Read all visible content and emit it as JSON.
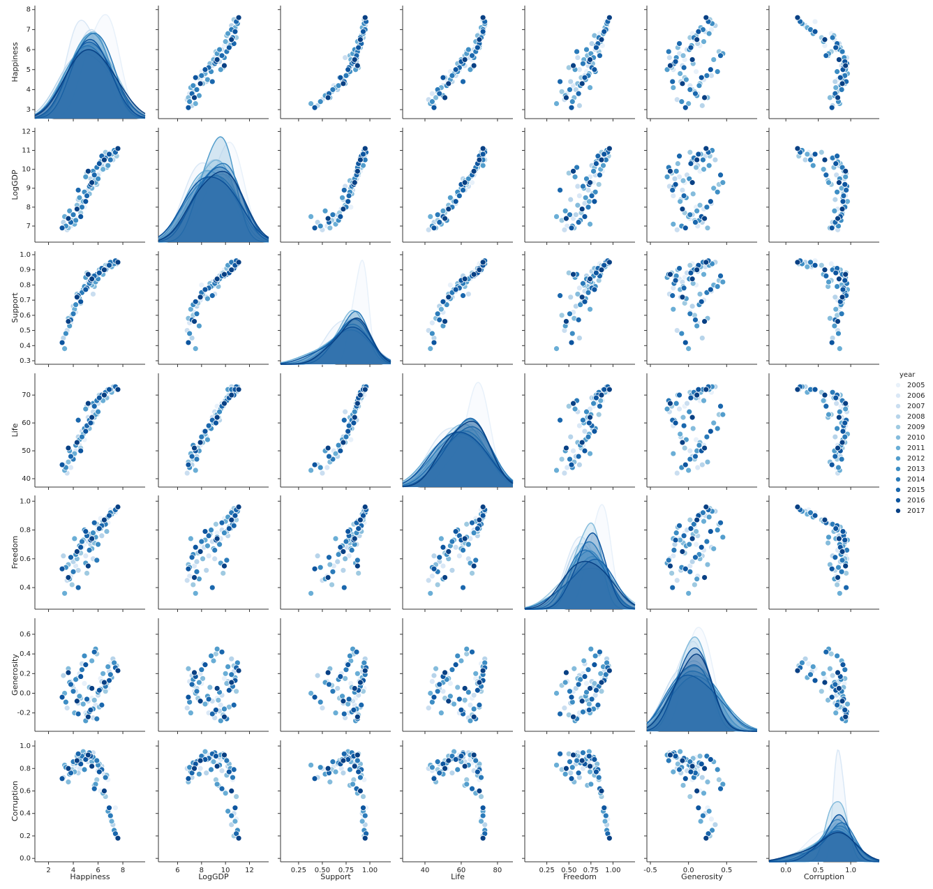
{
  "chart_data": {
    "type": "pairplot",
    "variables": [
      "Happiness",
      "LogGDP",
      "Support",
      "Life",
      "Freedom",
      "Generosity",
      "Corruption"
    ],
    "axes": [
      {
        "xlim": [
          0.9,
          9.8
        ],
        "xticks": [
          2,
          4,
          6,
          8
        ],
        "ylim": [
          2.55,
          8.2
        ],
        "yticks": [
          3,
          4,
          5,
          6,
          7,
          8
        ]
      },
      {
        "xlim": [
          4.4,
          13.6
        ],
        "xticks": [
          6,
          8,
          10,
          12
        ],
        "ylim": [
          6.15,
          12.2
        ],
        "yticks": [
          7,
          8,
          9,
          10,
          11,
          12
        ]
      },
      {
        "xlim": [
          0.06,
          1.22
        ],
        "xticks": [
          0.25,
          {
            "value": 0.5,
            "label": "0.50"
          },
          0.75,
          {
            "value": 1,
            "label": "1.00"
          }
        ],
        "ylim": [
          0.277,
          1.023
        ],
        "yticks": [
          0.3,
          0.4,
          0.5,
          0.6,
          0.7,
          0.8,
          0.9,
          {
            "value": 1,
            "label": "1.0"
          }
        ]
      },
      {
        "xlim": [
          27.7,
          88.5
        ],
        "xticks": [
          40,
          60,
          80
        ],
        "ylim": [
          37,
          77.8
        ],
        "yticks": [
          40,
          50,
          60,
          70
        ]
      },
      {
        "xlim": [
          0,
          1.25
        ],
        "xticks": [
          0.25,
          {
            "value": 0.5,
            "label": "0.50"
          },
          0.75,
          {
            "value": 1,
            "label": "1.00"
          }
        ],
        "ylim": [
          0.25,
          1.04
        ],
        "yticks": [
          0.4,
          0.6,
          0.8,
          {
            "value": 1,
            "label": "1.0"
          }
        ]
      },
      {
        "xlim": [
          -0.546,
          0.9
        ],
        "xticks": [
          -0.5,
          {
            "value": 0,
            "label": "0.0"
          },
          0.5
        ],
        "ylim": [
          -0.387,
          0.763
        ],
        "yticks": [
          -0.2,
          {
            "value": 0,
            "label": "0.0"
          },
          0.2,
          0.4,
          0.6
        ]
      },
      {
        "xlim": [
          -0.26,
          1.44
        ],
        "xticks": [
          {
            "value": 0,
            "label": "0.0"
          },
          0.5,
          {
            "value": 1,
            "label": "1.0"
          }
        ],
        "ylim": [
          -0.03,
          1.05
        ],
        "yticks": [
          {
            "value": 0,
            "label": "0.0"
          },
          0.2,
          0.4,
          0.6,
          0.8,
          {
            "value": 1,
            "label": "1.0"
          }
        ]
      }
    ],
    "legend_title": "year",
    "series": [
      {
        "name": "2005",
        "color": "#e8f1fa",
        "points": [
          [
            7.4,
            10.8,
            0.96,
            72,
            0.92,
            0.25,
            0.45
          ],
          [
            6.8,
            10.6,
            0.94,
            70,
            0.85,
            0.05,
            0.7
          ],
          [
            5.5,
            9.3,
            0.85,
            66,
            0.78,
            -0.05,
            0.85
          ],
          [
            4.9,
            8.0,
            0.8,
            54,
            0.7,
            0.1,
            0.9
          ],
          [
            6.2,
            9.9,
            0.9,
            68,
            0.88,
            0.15,
            0.6
          ],
          [
            7.0,
            10.9,
            0.93,
            71,
            0.94,
            0.3,
            0.35
          ]
        ]
      },
      {
        "name": "2006",
        "color": "#dae8f6",
        "points": [
          [
            4.2,
            7.4,
            0.62,
            50,
            0.55,
            0.02,
            0.82
          ],
          [
            5.8,
            9.6,
            0.84,
            65,
            0.74,
            -0.12,
            0.88
          ],
          [
            3.8,
            7.0,
            0.55,
            44,
            0.48,
            0.12,
            0.78
          ],
          [
            6.5,
            10.4,
            0.91,
            70,
            0.83,
            0.08,
            0.75
          ],
          [
            5.0,
            8.6,
            0.78,
            59,
            0.62,
            -0.2,
            0.92
          ],
          [
            4.5,
            7.9,
            0.7,
            52,
            0.66,
            0.2,
            0.8
          ]
        ]
      },
      {
        "name": "2007",
        "color": "#cadef0",
        "points": [
          [
            5.2,
            8.9,
            0.82,
            62,
            0.72,
            -0.08,
            0.86
          ],
          [
            3.5,
            6.8,
            0.5,
            42,
            0.45,
            -0.15,
            0.8
          ],
          [
            6.9,
            10.7,
            0.92,
            72,
            0.9,
            0.22,
            0.4
          ],
          [
            4.7,
            8.2,
            0.76,
            57,
            0.68,
            0.3,
            0.88
          ],
          [
            6.0,
            9.7,
            0.88,
            67,
            0.8,
            -0.02,
            0.78
          ],
          [
            5.6,
            9.1,
            0.74,
            64,
            0.6,
            -0.25,
            0.94
          ]
        ]
      },
      {
        "name": "2008",
        "color": "#b7d4ea",
        "points": [
          [
            4.0,
            7.6,
            0.66,
            48,
            0.58,
            0.05,
            0.84
          ],
          [
            7.2,
            10.5,
            0.95,
            73,
            0.93,
            0.35,
            0.3
          ],
          [
            5.4,
            9.5,
            0.86,
            61,
            0.7,
            -0.18,
            0.9
          ],
          [
            4.4,
            8.4,
            0.72,
            55,
            0.52,
            -0.1,
            0.76
          ],
          [
            6.3,
            10.2,
            0.89,
            69,
            0.76,
            0.12,
            0.82
          ],
          [
            3.2,
            7.2,
            0.45,
            45,
            0.62,
            0.18,
            0.72
          ]
        ]
      },
      {
        "name": "2009",
        "color": "#9fcae1",
        "points": [
          [
            5.9,
            9.2,
            0.83,
            63,
            0.84,
            0.4,
            0.7
          ],
          [
            4.6,
            7.7,
            0.68,
            51,
            0.64,
            -0.05,
            0.87
          ],
          [
            6.6,
            10.9,
            0.93,
            71,
            0.87,
            0.02,
            0.55
          ],
          [
            5.1,
            9.8,
            0.88,
            66,
            0.5,
            -0.22,
            0.93
          ],
          [
            3.9,
            7.3,
            0.6,
            47,
            0.42,
            0.08,
            0.79
          ],
          [
            7.5,
            10.7,
            0.94,
            72,
            0.95,
            0.28,
            0.2
          ]
        ]
      },
      {
        "name": "2010",
        "color": "#85bcdc",
        "points": [
          [
            4.3,
            8.1,
            0.74,
            53,
            0.6,
            0.15,
            0.91
          ],
          [
            5.7,
            9.4,
            0.79,
            62,
            0.71,
            -0.07,
            0.65
          ],
          [
            6.1,
            10.3,
            0.9,
            70,
            0.82,
            -0.14,
            0.84
          ],
          [
            3.6,
            6.9,
            0.58,
            46,
            0.56,
            0.25,
            0.68
          ],
          [
            5.3,
            8.7,
            0.81,
            58,
            0.77,
            0.06,
            0.89
          ],
          [
            6.7,
            10.1,
            0.91,
            69,
            0.79,
            0.1,
            0.74
          ]
        ]
      },
      {
        "name": "2011",
        "color": "#6aaed6",
        "points": [
          [
            4.8,
            8.3,
            0.77,
            56,
            0.73,
            -0.11,
            0.95
          ],
          [
            6.4,
            10.0,
            0.87,
            68,
            0.86,
            0.2,
            0.58
          ],
          [
            3.3,
            7.5,
            0.38,
            43,
            0.36,
            0.0,
            0.83
          ],
          [
            5.5,
            9.0,
            0.8,
            60,
            0.67,
            0.33,
            0.86
          ],
          [
            7.1,
            10.8,
            0.92,
            71,
            0.91,
            0.16,
            0.33
          ],
          [
            4.1,
            7.1,
            0.64,
            49,
            0.74,
            -0.2,
            0.77
          ]
        ]
      },
      {
        "name": "2012",
        "color": "#529dcc",
        "points": [
          [
            5.0,
            9.6,
            0.85,
            65,
            0.57,
            -0.28,
            0.92
          ],
          [
            6.2,
            10.4,
            0.89,
            70,
            0.81,
            0.04,
            0.8
          ],
          [
            3.7,
            7.8,
            0.53,
            50,
            0.46,
            0.11,
            0.75
          ],
          [
            4.5,
            8.5,
            0.71,
            54,
            0.69,
            -0.03,
            0.88
          ],
          [
            6.8,
            10.2,
            0.93,
            72,
            0.89,
            0.27,
            0.42
          ],
          [
            5.8,
            9.3,
            0.82,
            63,
            0.75,
            0.45,
            0.66
          ]
        ]
      },
      {
        "name": "2013",
        "color": "#3d8dc4",
        "points": [
          [
            4.2,
            7.3,
            0.67,
            52,
            0.63,
            0.14,
            0.85
          ],
          [
            5.6,
            9.9,
            0.86,
            67,
            0.78,
            -0.16,
            0.9
          ],
          [
            7.3,
            11.0,
            0.94,
            73,
            0.93,
            0.31,
            0.25
          ],
          [
            3.4,
            7.0,
            0.48,
            44,
            0.54,
            -0.09,
            0.81
          ],
          [
            6.0,
            9.5,
            0.84,
            64,
            0.7,
            0.01,
            0.83
          ],
          [
            4.9,
            8.8,
            0.79,
            58,
            0.8,
            0.38,
            0.79
          ]
        ]
      },
      {
        "name": "2014",
        "color": "#2a7ab9",
        "points": [
          [
            5.3,
            9.1,
            0.81,
            61,
            0.66,
            -0.19,
            0.94
          ],
          [
            6.6,
            10.6,
            0.9,
            71,
            0.84,
            0.07,
            0.72
          ],
          [
            4.0,
            7.6,
            0.61,
            47,
            0.51,
            0.02,
            0.86
          ],
          [
            4.7,
            8.0,
            0.75,
            55,
            0.72,
            0.24,
            0.91
          ],
          [
            7.0,
            10.5,
            0.95,
            72,
            0.92,
            0.19,
            0.38
          ],
          [
            5.9,
            10.1,
            0.87,
            68,
            0.59,
            -0.26,
            0.87
          ]
        ]
      },
      {
        "name": "2015",
        "color": "#1a67ad",
        "points": [
          [
            3.8,
            7.2,
            0.57,
            48,
            0.61,
            0.09,
            0.76
          ],
          [
            5.1,
            8.6,
            0.78,
            59,
            0.76,
            -0.06,
            0.89
          ],
          [
            6.3,
            10.7,
            0.91,
            70,
            0.83,
            -0.12,
            0.79
          ],
          [
            4.4,
            8.9,
            0.73,
            61,
            0.4,
            -0.21,
            0.93
          ],
          [
            7.4,
            10.9,
            0.96,
            73,
            0.94,
            0.26,
            0.22
          ],
          [
            5.7,
            9.7,
            0.86,
            66,
            0.85,
            0.42,
            0.62
          ]
        ]
      },
      {
        "name": "2016",
        "color": "#0d559f",
        "points": [
          [
            4.6,
            7.5,
            0.69,
            50,
            0.68,
            0.17,
            0.84
          ],
          [
            6.9,
            10.8,
            0.93,
            72,
            0.9,
            0.13,
            0.45
          ],
          [
            5.4,
            9.2,
            0.83,
            60,
            0.73,
            -0.17,
            0.91
          ],
          [
            3.1,
            6.9,
            0.42,
            45,
            0.53,
            -0.04,
            0.71
          ],
          [
            6.1,
            10.3,
            0.88,
            69,
            0.81,
            0.03,
            0.77
          ],
          [
            5.0,
            8.3,
            0.77,
            57,
            0.79,
            0.29,
            0.88
          ]
        ]
      },
      {
        "name": "2017",
        "color": "#084084",
        "points": [
          [
            4.3,
            7.9,
            0.72,
            53,
            0.65,
            -0.08,
            0.87
          ],
          [
            5.5,
            9.3,
            0.84,
            62,
            0.74,
            0.05,
            0.82
          ],
          [
            6.5,
            10.5,
            0.9,
            70,
            0.87,
            0.11,
            0.6
          ],
          [
            3.6,
            7.4,
            0.56,
            51,
            0.47,
            0.21,
            0.8
          ],
          [
            7.6,
            11.1,
            0.95,
            72,
            0.96,
            0.23,
            0.18
          ],
          [
            5.2,
            9.9,
            0.87,
            67,
            0.55,
            -0.24,
            0.92
          ]
        ]
      }
    ]
  }
}
